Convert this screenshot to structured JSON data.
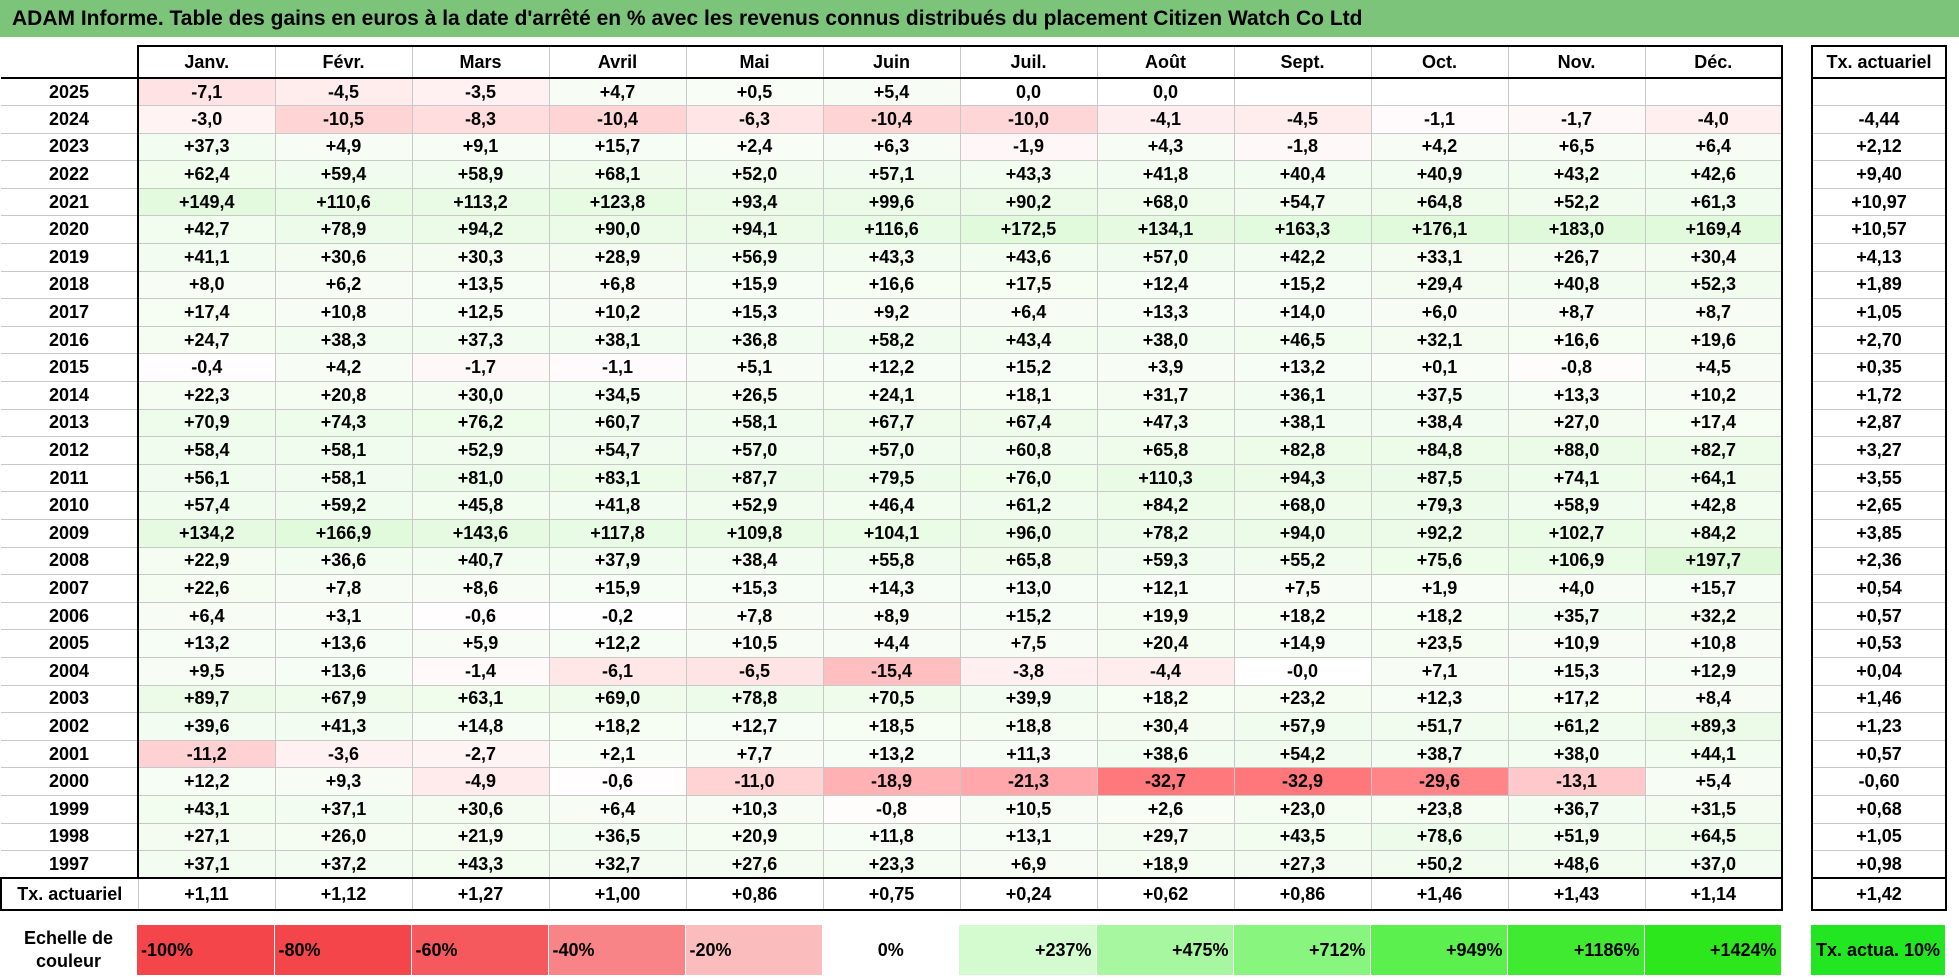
{
  "title": "ADAM Informe. Table des gains en euros à la date d'arrêté en % avec les revenus connus distribués du placement Citizen Watch Co Ltd",
  "months": [
    "Janv.",
    "Févr.",
    "Mars",
    "Avril",
    "Mai",
    "Juin",
    "Juil.",
    "Août",
    "Sept.",
    "Oct.",
    "Nov.",
    "Déc."
  ],
  "actuarial_header": "Tx. actuariel",
  "rows": [
    {
      "year": "2025",
      "values": [
        "-7,1",
        "-4,5",
        "-3,5",
        "+4,7",
        "+0,5",
        "+5,4",
        "0,0",
        "0,0",
        "",
        "",
        "",
        ""
      ],
      "rate": ""
    },
    {
      "year": "2024",
      "values": [
        "-3,0",
        "-10,5",
        "-8,3",
        "-10,4",
        "-6,3",
        "-10,4",
        "-10,0",
        "-4,1",
        "-4,5",
        "-1,1",
        "-1,7",
        "-4,0"
      ],
      "rate": "-4,44"
    },
    {
      "year": "2023",
      "values": [
        "+37,3",
        "+4,9",
        "+9,1",
        "+15,7",
        "+2,4",
        "+6,3",
        "-1,9",
        "+4,3",
        "-1,8",
        "+4,2",
        "+6,5",
        "+6,4"
      ],
      "rate": "+2,12"
    },
    {
      "year": "2022",
      "values": [
        "+62,4",
        "+59,4",
        "+58,9",
        "+68,1",
        "+52,0",
        "+57,1",
        "+43,3",
        "+41,8",
        "+40,4",
        "+40,9",
        "+43,2",
        "+42,6"
      ],
      "rate": "+9,40"
    },
    {
      "year": "2021",
      "values": [
        "+149,4",
        "+110,6",
        "+113,2",
        "+123,8",
        "+93,4",
        "+99,6",
        "+90,2",
        "+68,0",
        "+54,7",
        "+64,8",
        "+52,2",
        "+61,3"
      ],
      "rate": "+10,97"
    },
    {
      "year": "2020",
      "values": [
        "+42,7",
        "+78,9",
        "+94,2",
        "+90,0",
        "+94,1",
        "+116,6",
        "+172,5",
        "+134,1",
        "+163,3",
        "+176,1",
        "+183,0",
        "+169,4"
      ],
      "rate": "+10,57"
    },
    {
      "year": "2019",
      "values": [
        "+41,1",
        "+30,6",
        "+30,3",
        "+28,9",
        "+56,9",
        "+43,3",
        "+43,6",
        "+57,0",
        "+42,2",
        "+33,1",
        "+26,7",
        "+30,4"
      ],
      "rate": "+4,13"
    },
    {
      "year": "2018",
      "values": [
        "+8,0",
        "+6,2",
        "+13,5",
        "+6,8",
        "+15,9",
        "+16,6",
        "+17,5",
        "+12,4",
        "+15,2",
        "+29,4",
        "+40,8",
        "+52,3"
      ],
      "rate": "+1,89"
    },
    {
      "year": "2017",
      "values": [
        "+17,4",
        "+10,8",
        "+12,5",
        "+10,2",
        "+15,3",
        "+9,2",
        "+6,4",
        "+13,3",
        "+14,0",
        "+6,0",
        "+8,7",
        "+8,7"
      ],
      "rate": "+1,05"
    },
    {
      "year": "2016",
      "values": [
        "+24,7",
        "+38,3",
        "+37,3",
        "+38,1",
        "+36,8",
        "+58,2",
        "+43,4",
        "+38,0",
        "+46,5",
        "+32,1",
        "+16,6",
        "+19,6"
      ],
      "rate": "+2,70"
    },
    {
      "year": "2015",
      "values": [
        "-0,4",
        "+4,2",
        "-1,7",
        "-1,1",
        "+5,1",
        "+12,2",
        "+15,2",
        "+3,9",
        "+13,2",
        "+0,1",
        "-0,8",
        "+4,5"
      ],
      "rate": "+0,35"
    },
    {
      "year": "2014",
      "values": [
        "+22,3",
        "+20,8",
        "+30,0",
        "+34,5",
        "+26,5",
        "+24,1",
        "+18,1",
        "+31,7",
        "+36,1",
        "+37,5",
        "+13,3",
        "+10,2"
      ],
      "rate": "+1,72"
    },
    {
      "year": "2013",
      "values": [
        "+70,9",
        "+74,3",
        "+76,2",
        "+60,7",
        "+58,1",
        "+67,7",
        "+67,4",
        "+47,3",
        "+38,1",
        "+38,4",
        "+27,0",
        "+17,4"
      ],
      "rate": "+2,87"
    },
    {
      "year": "2012",
      "values": [
        "+58,4",
        "+58,1",
        "+52,9",
        "+54,7",
        "+57,0",
        "+57,0",
        "+60,8",
        "+65,8",
        "+82,8",
        "+84,8",
        "+88,0",
        "+82,7"
      ],
      "rate": "+3,27"
    },
    {
      "year": "2011",
      "values": [
        "+56,1",
        "+58,1",
        "+81,0",
        "+83,1",
        "+87,7",
        "+79,5",
        "+76,0",
        "+110,3",
        "+94,3",
        "+87,5",
        "+74,1",
        "+64,1"
      ],
      "rate": "+3,55"
    },
    {
      "year": "2010",
      "values": [
        "+57,4",
        "+59,2",
        "+45,8",
        "+41,8",
        "+52,9",
        "+46,4",
        "+61,2",
        "+84,2",
        "+68,0",
        "+79,3",
        "+58,9",
        "+42,8"
      ],
      "rate": "+2,65"
    },
    {
      "year": "2009",
      "values": [
        "+134,2",
        "+166,9",
        "+143,6",
        "+117,8",
        "+109,8",
        "+104,1",
        "+96,0",
        "+78,2",
        "+94,0",
        "+92,2",
        "+102,7",
        "+84,2"
      ],
      "rate": "+3,85"
    },
    {
      "year": "2008",
      "values": [
        "+22,9",
        "+36,6",
        "+40,7",
        "+37,9",
        "+38,4",
        "+55,8",
        "+65,8",
        "+59,3",
        "+55,2",
        "+75,6",
        "+106,9",
        "+197,7"
      ],
      "rate": "+2,36"
    },
    {
      "year": "2007",
      "values": [
        "+22,6",
        "+7,8",
        "+8,6",
        "+15,9",
        "+15,3",
        "+14,3",
        "+13,0",
        "+12,1",
        "+7,5",
        "+1,9",
        "+4,0",
        "+15,7"
      ],
      "rate": "+0,54"
    },
    {
      "year": "2006",
      "values": [
        "+6,4",
        "+3,1",
        "-0,6",
        "-0,2",
        "+7,8",
        "+8,9",
        "+15,2",
        "+19,9",
        "+18,2",
        "+18,2",
        "+35,7",
        "+32,2"
      ],
      "rate": "+0,57"
    },
    {
      "year": "2005",
      "values": [
        "+13,2",
        "+13,6",
        "+5,9",
        "+12,2",
        "+10,5",
        "+4,4",
        "+7,5",
        "+20,4",
        "+14,9",
        "+23,5",
        "+10,9",
        "+10,8"
      ],
      "rate": "+0,53"
    },
    {
      "year": "2004",
      "values": [
        "+9,5",
        "+13,6",
        "-1,4",
        "-6,1",
        "-6,5",
        "-15,4",
        "-3,8",
        "-4,4",
        "-0,0",
        "+7,1",
        "+15,3",
        "+12,9"
      ],
      "rate": "+0,04"
    },
    {
      "year": "2003",
      "values": [
        "+89,7",
        "+67,9",
        "+63,1",
        "+69,0",
        "+78,8",
        "+70,5",
        "+39,9",
        "+18,2",
        "+23,2",
        "+12,3",
        "+17,2",
        "+8,4"
      ],
      "rate": "+1,46"
    },
    {
      "year": "2002",
      "values": [
        "+39,6",
        "+41,3",
        "+14,8",
        "+18,2",
        "+12,7",
        "+18,5",
        "+18,8",
        "+30,4",
        "+57,9",
        "+51,7",
        "+61,2",
        "+89,3"
      ],
      "rate": "+1,23"
    },
    {
      "year": "2001",
      "values": [
        "-11,2",
        "-3,6",
        "-2,7",
        "+2,1",
        "+7,7",
        "+13,2",
        "+11,3",
        "+38,6",
        "+54,2",
        "+38,7",
        "+38,0",
        "+44,1"
      ],
      "rate": "+0,57"
    },
    {
      "year": "2000",
      "values": [
        "+12,2",
        "+9,3",
        "-4,9",
        "-0,6",
        "-11,0",
        "-18,9",
        "-21,3",
        "-32,7",
        "-32,9",
        "-29,6",
        "-13,1",
        "+5,4"
      ],
      "rate": "-0,60"
    },
    {
      "year": "1999",
      "values": [
        "+43,1",
        "+37,1",
        "+30,6",
        "+6,4",
        "+10,3",
        "-0,8",
        "+10,5",
        "+2,6",
        "+23,0",
        "+23,8",
        "+36,7",
        "+31,5"
      ],
      "rate": "+0,68"
    },
    {
      "year": "1998",
      "values": [
        "+27,1",
        "+26,0",
        "+21,9",
        "+36,5",
        "+20,9",
        "+11,8",
        "+13,1",
        "+29,7",
        "+43,5",
        "+78,6",
        "+51,9",
        "+64,5"
      ],
      "rate": "+1,05"
    },
    {
      "year": "1997",
      "values": [
        "+37,1",
        "+37,2",
        "+43,3",
        "+32,7",
        "+27,6",
        "+23,3",
        "+6,9",
        "+18,9",
        "+27,3",
        "+50,2",
        "+48,6",
        "+37,0"
      ],
      "rate": "+0,98"
    }
  ],
  "total_row": {
    "label": "Tx. actuariel",
    "values": [
      "+1,11",
      "+1,12",
      "+1,27",
      "+1,00",
      "+0,86",
      "+0,75",
      "+0,24",
      "+0,62",
      "+0,86",
      "+1,46",
      "+1,43",
      "+1,14"
    ],
    "rate": "+1,42"
  },
  "scale": {
    "label": "Echelle de couleur",
    "steps": [
      {
        "text": "-100%",
        "color": "#f4454b",
        "kind": "neg"
      },
      {
        "text": "-80%",
        "color": "#f4454b",
        "kind": "neg"
      },
      {
        "text": "-60%",
        "color": "#f5585d",
        "kind": "neg"
      },
      {
        "text": "-40%",
        "color": "#f88487",
        "kind": "neg"
      },
      {
        "text": "-20%",
        "color": "#fbbcbd",
        "kind": "neg"
      },
      {
        "text": "0%",
        "color": "#ffffff",
        "kind": "zero"
      },
      {
        "text": "+237%",
        "color": "#d4fbd0",
        "kind": "pos"
      },
      {
        "text": "+475%",
        "color": "#a6f7a0",
        "kind": "pos"
      },
      {
        "text": "+712%",
        "color": "#88f57f",
        "kind": "pos"
      },
      {
        "text": "+949%",
        "color": "#5cf04f",
        "kind": "pos"
      },
      {
        "text": "+1186%",
        "color": "#3fea30",
        "kind": "pos"
      },
      {
        "text": "+1424%",
        "color": "#2be71c",
        "kind": "pos"
      }
    ],
    "actual_label": "Tx. actua. 10%"
  }
}
